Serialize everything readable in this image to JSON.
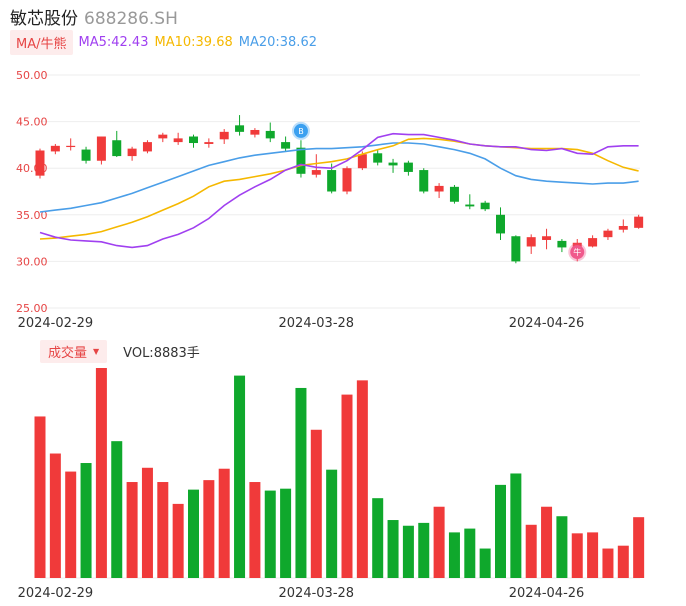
{
  "header": {
    "name": "敏芯股份",
    "code": "688286.SH"
  },
  "ma": {
    "toggle_label": "MA/牛熊",
    "items": [
      {
        "label": "MA5:42.43",
        "color": "#a040f0"
      },
      {
        "label": "MA10:39.68",
        "color": "#f5b800"
      },
      {
        "label": "MA20:38.62",
        "color": "#4a9ee8"
      }
    ]
  },
  "volume": {
    "toggle_label": "成交量",
    "value_label": "VOL:8883手"
  },
  "colors": {
    "up": "#f03a3a",
    "down": "#0fa82c",
    "grid": "#eeeeee"
  },
  "markers": {
    "buy_label": "B",
    "sell_label": "牛"
  },
  "chart_data": {
    "type": "candlestick",
    "y_ticks": [
      "50.00",
      "45.00",
      "40.00",
      "35.00",
      "30.00",
      "25.00"
    ],
    "ylim": [
      25,
      50
    ],
    "x_tick_labels": [
      "2024-02-29",
      "2024-03-28",
      "2024-04-26"
    ],
    "x_tick_indices": [
      1,
      18,
      33
    ],
    "candles": [
      {
        "o": 39.2,
        "c": 41.9,
        "h": 42.1,
        "l": 38.9
      },
      {
        "o": 41.8,
        "c": 42.4,
        "h": 42.6,
        "l": 41.5
      },
      {
        "o": 42.3,
        "c": 42.4,
        "h": 43.2,
        "l": 41.9
      },
      {
        "o": 42.0,
        "c": 40.8,
        "h": 42.3,
        "l": 40.5
      },
      {
        "o": 40.8,
        "c": 43.4,
        "h": 43.4,
        "l": 40.4
      },
      {
        "o": 43.0,
        "c": 41.3,
        "h": 44.0,
        "l": 41.2
      },
      {
        "o": 41.3,
        "c": 42.1,
        "h": 42.3,
        "l": 40.8
      },
      {
        "o": 41.8,
        "c": 42.8,
        "h": 43.0,
        "l": 41.6
      },
      {
        "o": 43.2,
        "c": 43.6,
        "h": 43.8,
        "l": 42.8
      },
      {
        "o": 42.8,
        "c": 43.2,
        "h": 43.8,
        "l": 42.5
      },
      {
        "o": 43.4,
        "c": 42.7,
        "h": 43.6,
        "l": 42.2
      },
      {
        "o": 42.6,
        "c": 42.8,
        "h": 43.2,
        "l": 42.2
      },
      {
        "o": 43.1,
        "c": 43.9,
        "h": 44.2,
        "l": 42.6
      },
      {
        "o": 44.6,
        "c": 43.9,
        "h": 45.7,
        "l": 43.5
      },
      {
        "o": 43.6,
        "c": 44.1,
        "h": 44.3,
        "l": 43.3
      },
      {
        "o": 44.0,
        "c": 43.2,
        "h": 44.9,
        "l": 42.8
      },
      {
        "o": 42.8,
        "c": 42.1,
        "h": 43.4,
        "l": 41.8
      },
      {
        "o": 42.2,
        "c": 39.4,
        "h": 43.0,
        "l": 39.0
      },
      {
        "o": 39.3,
        "c": 39.8,
        "h": 41.5,
        "l": 39.0
      },
      {
        "o": 39.8,
        "c": 37.5,
        "h": 40.5,
        "l": 37.3
      },
      {
        "o": 37.5,
        "c": 40.0,
        "h": 40.2,
        "l": 37.2
      },
      {
        "o": 40.0,
        "c": 41.5,
        "h": 41.8,
        "l": 39.8
      },
      {
        "o": 41.6,
        "c": 40.6,
        "h": 42.0,
        "l": 40.3
      },
      {
        "o": 40.6,
        "c": 40.3,
        "h": 41.0,
        "l": 39.5
      },
      {
        "o": 40.6,
        "c": 39.6,
        "h": 40.8,
        "l": 39.2
      },
      {
        "o": 39.8,
        "c": 37.5,
        "h": 40.0,
        "l": 37.3
      },
      {
        "o": 37.5,
        "c": 38.1,
        "h": 38.4,
        "l": 36.8
      },
      {
        "o": 38.0,
        "c": 36.4,
        "h": 38.2,
        "l": 36.2
      },
      {
        "o": 36.1,
        "c": 35.9,
        "h": 37.2,
        "l": 35.6
      },
      {
        "o": 36.3,
        "c": 35.6,
        "h": 36.5,
        "l": 35.4
      },
      {
        "o": 35.0,
        "c": 33.0,
        "h": 35.8,
        "l": 32.3
      },
      {
        "o": 32.7,
        "c": 30.0,
        "h": 32.8,
        "l": 29.8
      },
      {
        "o": 31.6,
        "c": 32.6,
        "h": 32.9,
        "l": 30.8
      },
      {
        "o": 32.3,
        "c": 32.7,
        "h": 33.5,
        "l": 31.3
      },
      {
        "o": 32.2,
        "c": 31.5,
        "h": 32.4,
        "l": 31.0
      },
      {
        "o": 31.5,
        "c": 32.0,
        "h": 32.4,
        "l": 30.0
      },
      {
        "o": 31.6,
        "c": 32.5,
        "h": 32.8,
        "l": 31.5
      },
      {
        "o": 32.6,
        "c": 33.3,
        "h": 33.5,
        "l": 32.3
      },
      {
        "o": 33.4,
        "c": 33.8,
        "h": 34.5,
        "l": 33.1
      },
      {
        "o": 33.6,
        "c": 34.8,
        "h": 35.0,
        "l": 33.5
      }
    ],
    "volume": [
      170,
      131,
      112,
      121,
      221,
      144,
      101,
      116,
      101,
      78,
      93,
      103,
      115,
      213,
      101,
      92,
      94,
      200,
      156,
      114,
      193,
      208,
      84,
      61,
      55,
      58,
      75,
      48,
      52,
      31,
      98,
      110,
      56,
      75,
      65,
      47,
      48,
      31,
      34,
      64
    ],
    "ma5": [
      33.1,
      32.6,
      32.3,
      32.2,
      32.1,
      31.7,
      31.5,
      31.7,
      32.4,
      32.9,
      33.6,
      34.6,
      36.0,
      37.1,
      38.0,
      38.8,
      39.8,
      40.4,
      40.1,
      40.0,
      40.8,
      42.0,
      43.3,
      43.7,
      43.6,
      43.6,
      43.3,
      43.0,
      42.6,
      42.4,
      42.3,
      42.3,
      42.0,
      41.9,
      42.1,
      41.6,
      41.5,
      42.3,
      42.4,
      42.4
    ],
    "ma10": [
      32.4,
      32.5,
      32.7,
      32.9,
      33.2,
      33.7,
      34.2,
      34.8,
      35.5,
      36.2,
      37.0,
      38.0,
      38.6,
      38.8,
      39.1,
      39.4,
      39.8,
      40.3,
      40.5,
      40.7,
      41.0,
      41.5,
      42.0,
      42.4,
      43.1,
      43.2,
      43.1,
      42.9,
      42.6,
      42.4,
      42.3,
      42.2,
      42.1,
      42.1,
      42.1,
      42.0,
      41.6,
      40.8,
      40.1,
      39.7
    ],
    "ma20": [
      35.3,
      35.5,
      35.7,
      36.0,
      36.3,
      36.8,
      37.3,
      37.9,
      38.5,
      39.1,
      39.7,
      40.3,
      40.7,
      41.1,
      41.4,
      41.6,
      41.8,
      42.0,
      42.1,
      42.1,
      42.2,
      42.3,
      42.5,
      42.7,
      42.7,
      42.6,
      42.3,
      42.0,
      41.6,
      41.0,
      40.0,
      39.2,
      38.8,
      38.6,
      38.5,
      38.4,
      38.3,
      38.4,
      38.4,
      38.6
    ]
  }
}
